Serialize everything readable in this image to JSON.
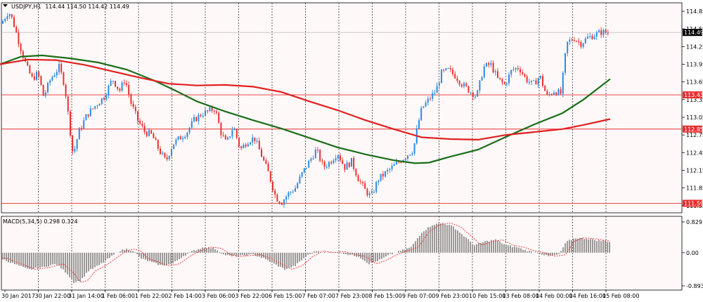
{
  "header": {
    "symbol": "USDJPY,H1",
    "ohlc": "114.44 114.50 114.42 114.49",
    "indicator": "MACD(5,34,5) 0.298 0.324"
  },
  "colors": {
    "background": "#fff8f8",
    "bull": "#2b8be0",
    "bear": "#e83030",
    "ma_fast": "#1a6e1a",
    "ma_slow": "#e02020",
    "level_line": "#e83030",
    "grid": "#000000",
    "histogram": "#808080",
    "signal": "#e83030"
  },
  "chart_data": [
    {
      "type": "candlestick",
      "title": "",
      "xlabel": "",
      "ylabel": "",
      "ylim": [
        111.5,
        114.85
      ],
      "y_ticks": [
        "114.85",
        "114.55",
        "114.25",
        "113.95",
        "113.65",
        "113.35",
        "113.05",
        "112.75",
        "112.45",
        "112.15",
        "111.85",
        "111.55"
      ],
      "x_ticks": [
        "30 Jan 2017",
        "30 Jan 22:00",
        "31 Jan 14:00",
        "1 Feb 06:00",
        "1 Feb 22:00",
        "2 Feb 14:00",
        "3 Feb 06:00",
        "3 Feb 22:00",
        "6 Feb 15:00",
        "7 Feb 07:00",
        "7 Feb 23:00",
        "8 Feb 15:00",
        "9 Feb 07:00",
        "9 Feb 23:00",
        "10 Feb 15:00",
        "13 Feb 08:00",
        "14 Feb 00:00",
        "14 Feb 16:00",
        "15 Feb 08:00"
      ],
      "current_price": "114.49",
      "levels": [
        "113.43",
        "112.85",
        "111.59"
      ],
      "close_path": [
        [
          0,
          114.6
        ],
        [
          12,
          114.85
        ],
        [
          18,
          114.7
        ],
        [
          30,
          114.2
        ],
        [
          38,
          113.9
        ],
        [
          46,
          113.7
        ],
        [
          54,
          113.8
        ],
        [
          62,
          113.4
        ],
        [
          72,
          113.7
        ],
        [
          84,
          113.9
        ],
        [
          92,
          113.6
        ],
        [
          104,
          112.4
        ],
        [
          112,
          112.8
        ],
        [
          124,
          113.1
        ],
        [
          136,
          113.25
        ],
        [
          148,
          113.4
        ],
        [
          160,
          113.7
        ],
        [
          170,
          113.5
        ],
        [
          178,
          113.7
        ],
        [
          186,
          113.3
        ],
        [
          196,
          113.0
        ],
        [
          206,
          112.8
        ],
        [
          216,
          112.75
        ],
        [
          226,
          112.5
        ],
        [
          236,
          112.3
        ],
        [
          246,
          112.6
        ],
        [
          256,
          112.7
        ],
        [
          266,
          112.8
        ],
        [
          276,
          113.0
        ],
        [
          286,
          113.1
        ],
        [
          296,
          113.15
        ],
        [
          306,
          113.2
        ],
        [
          314,
          112.8
        ],
        [
          322,
          112.6
        ],
        [
          332,
          112.9
        ],
        [
          342,
          112.5
        ],
        [
          352,
          112.65
        ],
        [
          362,
          112.7
        ],
        [
          372,
          112.4
        ],
        [
          382,
          112.1
        ],
        [
          392,
          111.7
        ],
        [
          400,
          111.6
        ],
        [
          410,
          111.75
        ],
        [
          420,
          111.85
        ],
        [
          430,
          112.1
        ],
        [
          440,
          112.3
        ],
        [
          450,
          112.5
        ],
        [
          460,
          112.2
        ],
        [
          470,
          112.3
        ],
        [
          480,
          112.45
        ],
        [
          490,
          112.2
        ],
        [
          500,
          112.3
        ],
        [
          510,
          112.0
        ],
        [
          520,
          111.8
        ],
        [
          528,
          111.7
        ],
        [
          538,
          112.0
        ],
        [
          548,
          112.1
        ],
        [
          558,
          112.2
        ],
        [
          568,
          112.3
        ],
        [
          578,
          112.4
        ],
        [
          588,
          112.5
        ],
        [
          594,
          112.9
        ],
        [
          600,
          113.2
        ],
        [
          610,
          113.35
        ],
        [
          620,
          113.5
        ],
        [
          628,
          113.8
        ],
        [
          638,
          113.85
        ],
        [
          648,
          113.75
        ],
        [
          658,
          113.6
        ],
        [
          668,
          113.5
        ],
        [
          678,
          113.4
        ],
        [
          688,
          113.9
        ],
        [
          698,
          113.95
        ],
        [
          708,
          113.7
        ],
        [
          718,
          113.6
        ],
        [
          728,
          113.85
        ],
        [
          738,
          113.9
        ],
        [
          748,
          113.7
        ],
        [
          758,
          113.6
        ],
        [
          768,
          113.75
        ],
        [
          778,
          113.4
        ],
        [
          788,
          113.5
        ],
        [
          798,
          113.45
        ],
        [
          806,
          114.3
        ],
        [
          816,
          114.4
        ],
        [
          826,
          114.3
        ],
        [
          836,
          114.4
        ],
        [
          846,
          114.45
        ],
        [
          856,
          114.5
        ],
        [
          866,
          114.48
        ]
      ],
      "series": [
        {
          "name": "",
          "color": "#1a6e1a",
          "points": [
            [
              0,
              113.95
            ],
            [
              30,
              114.08
            ],
            [
              60,
              114.1
            ],
            [
              100,
              114.05
            ],
            [
              140,
              113.98
            ],
            [
              180,
              113.86
            ],
            [
              220,
              113.67
            ],
            [
              250,
              113.5
            ],
            [
              280,
              113.32
            ],
            [
              320,
              113.15
            ],
            [
              360,
              113.0
            ],
            [
              400,
              112.86
            ],
            [
              440,
              112.7
            ],
            [
              480,
              112.54
            ],
            [
              520,
              112.42
            ],
            [
              560,
              112.32
            ],
            [
              590,
              112.27
            ],
            [
              610,
              112.28
            ],
            [
              640,
              112.38
            ],
            [
              680,
              112.5
            ],
            [
              720,
              112.72
            ],
            [
              760,
              112.93
            ],
            [
              800,
              113.12
            ],
            [
              830,
              113.35
            ],
            [
              868,
              113.7
            ]
          ]
        },
        {
          "name": "",
          "color": "#e02020",
          "points": [
            [
              0,
              113.95
            ],
            [
              40,
              114.03
            ],
            [
              80,
              114.02
            ],
            [
              120,
              113.94
            ],
            [
              160,
              113.83
            ],
            [
              200,
              113.72
            ],
            [
              240,
              113.62
            ],
            [
              280,
              113.59
            ],
            [
              320,
              113.6
            ],
            [
              360,
              113.57
            ],
            [
              400,
              113.48
            ],
            [
              440,
              113.32
            ],
            [
              480,
              113.17
            ],
            [
              520,
              113.0
            ],
            [
              560,
              112.85
            ],
            [
              600,
              112.71
            ],
            [
              640,
              112.68
            ],
            [
              680,
              112.67
            ],
            [
              720,
              112.75
            ],
            [
              760,
              112.8
            ],
            [
              800,
              112.85
            ],
            [
              830,
              112.92
            ],
            [
              868,
              113.02
            ]
          ]
        }
      ]
    },
    {
      "type": "bar",
      "title": "MACD(5,34,5) 0.298 0.324",
      "ylim": [
        -0.893,
        0.829
      ],
      "y_ticks": [
        "0.829",
        "0.00",
        "-0.893"
      ],
      "series": [
        {
          "name": "MACD(5,34,5)",
          "values": [
            [
              0,
              -0.15
            ],
            [
              20,
              -0.3
            ],
            [
              40,
              -0.45
            ],
            [
              60,
              -0.4
            ],
            [
              80,
              -0.3
            ],
            [
              95,
              -0.55
            ],
            [
              105,
              -0.8
            ],
            [
              115,
              -0.75
            ],
            [
              125,
              -0.5
            ],
            [
              140,
              -0.35
            ],
            [
              155,
              -0.15
            ],
            [
              170,
              0.05
            ],
            [
              180,
              0.1
            ],
            [
              190,
              0.05
            ],
            [
              200,
              -0.15
            ],
            [
              215,
              -0.25
            ],
            [
              230,
              -0.35
            ],
            [
              245,
              -0.3
            ],
            [
              260,
              -0.1
            ],
            [
              275,
              0.05
            ],
            [
              290,
              0.15
            ],
            [
              305,
              0.12
            ],
            [
              318,
              -0.05
            ],
            [
              330,
              -0.1
            ],
            [
              345,
              -0.08
            ],
            [
              360,
              -0.05
            ],
            [
              375,
              -0.15
            ],
            [
              390,
              -0.3
            ],
            [
              405,
              -0.45
            ],
            [
              420,
              -0.35
            ],
            [
              435,
              -0.1
            ],
            [
              450,
              0.05
            ],
            [
              465,
              0.0
            ],
            [
              480,
              0.03
            ],
            [
              495,
              -0.05
            ],
            [
              510,
              -0.1
            ],
            [
              525,
              -0.3
            ],
            [
              540,
              -0.2
            ],
            [
              555,
              -0.05
            ],
            [
              570,
              0.05
            ],
            [
              585,
              0.15
            ],
            [
              600,
              0.55
            ],
            [
              615,
              0.75
            ],
            [
              630,
              0.8
            ],
            [
              645,
              0.7
            ],
            [
              660,
              0.45
            ],
            [
              675,
              0.2
            ],
            [
              690,
              0.3
            ],
            [
              705,
              0.35
            ],
            [
              720,
              0.2
            ],
            [
              735,
              0.15
            ],
            [
              750,
              0.05
            ],
            [
              765,
              0.0
            ],
            [
              780,
              -0.1
            ],
            [
              795,
              -0.05
            ],
            [
              806,
              0.3
            ],
            [
              820,
              0.4
            ],
            [
              835,
              0.38
            ],
            [
              850,
              0.33
            ],
            [
              868,
              0.3
            ]
          ]
        }
      ]
    }
  ]
}
